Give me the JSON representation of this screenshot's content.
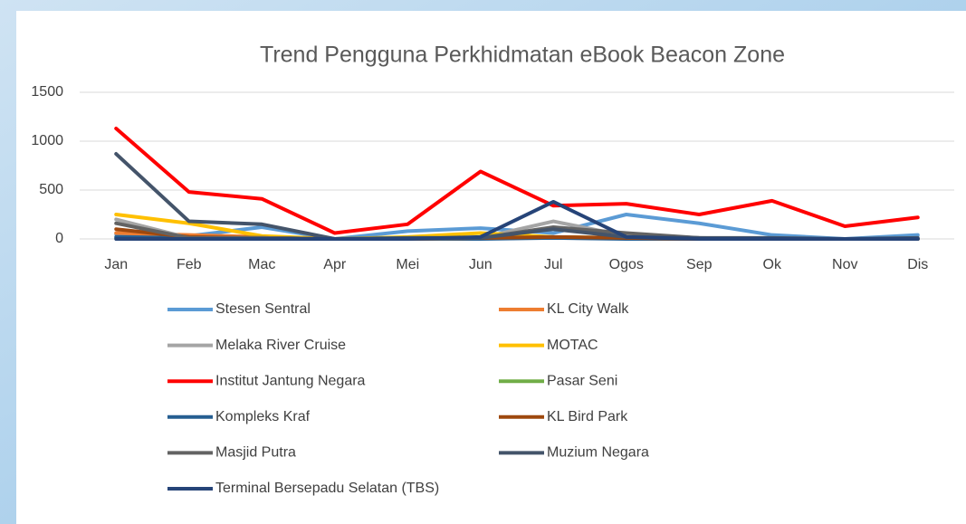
{
  "chart_data": {
    "type": "line",
    "title": "Trend Pengguna Perkhidmatan eBook Beacon Zone",
    "categories": [
      "Jan",
      "Feb",
      "Mac",
      "Apr",
      "Mei",
      "Jun",
      "Jul",
      "Ogos",
      "Sep",
      "Ok",
      "Nov",
      "Dis"
    ],
    "ylim": [
      0,
      1500
    ],
    "yticks": [
      0,
      500,
      1000,
      1500
    ],
    "grid": true,
    "series": [
      {
        "name": "Stesen Sentral",
        "color": "#5b9bd5",
        "values": [
          50,
          30,
          120,
          0,
          80,
          110,
          60,
          250,
          160,
          40,
          0,
          40
        ]
      },
      {
        "name": "KL City Walk",
        "color": "#ed7d31",
        "values": [
          60,
          40,
          20,
          0,
          10,
          10,
          10,
          10,
          0,
          0,
          0,
          0
        ]
      },
      {
        "name": "Melaka River Cruise",
        "color": "#a5a5a5",
        "values": [
          200,
          10,
          10,
          0,
          0,
          10,
          180,
          30,
          10,
          0,
          0,
          0
        ]
      },
      {
        "name": "MOTAC",
        "color": "#ffc000",
        "values": [
          250,
          160,
          30,
          0,
          20,
          60,
          20,
          10,
          0,
          0,
          0,
          0
        ]
      },
      {
        "name": "Institut Jantung Negara",
        "color": "#ff0000",
        "values": [
          1130,
          480,
          410,
          60,
          150,
          690,
          340,
          360,
          250,
          390,
          130,
          220
        ]
      },
      {
        "name": "Pasar Seni",
        "color": "#70ad47",
        "values": [
          10,
          10,
          10,
          0,
          10,
          10,
          10,
          10,
          0,
          0,
          0,
          0
        ]
      },
      {
        "name": "Kompleks Kraf",
        "color": "#255e91",
        "values": [
          20,
          10,
          10,
          0,
          0,
          0,
          10,
          0,
          0,
          0,
          0,
          0
        ]
      },
      {
        "name": "KL Bird Park",
        "color": "#9e480e",
        "values": [
          100,
          20,
          10,
          0,
          0,
          10,
          20,
          10,
          0,
          0,
          0,
          0
        ]
      },
      {
        "name": "Masjid Putra",
        "color": "#636363",
        "values": [
          160,
          10,
          10,
          0,
          0,
          10,
          120,
          60,
          10,
          0,
          0,
          0
        ]
      },
      {
        "name": "Muzium Negara",
        "color": "#44546a",
        "values": [
          870,
          180,
          150,
          0,
          10,
          10,
          100,
          20,
          10,
          10,
          0,
          10
        ]
      },
      {
        "name": "Terminal Bersepadu Selatan (TBS)",
        "color": "#264478",
        "values": [
          0,
          0,
          0,
          0,
          0,
          20,
          380,
          20,
          0,
          0,
          0,
          0
        ]
      }
    ]
  }
}
